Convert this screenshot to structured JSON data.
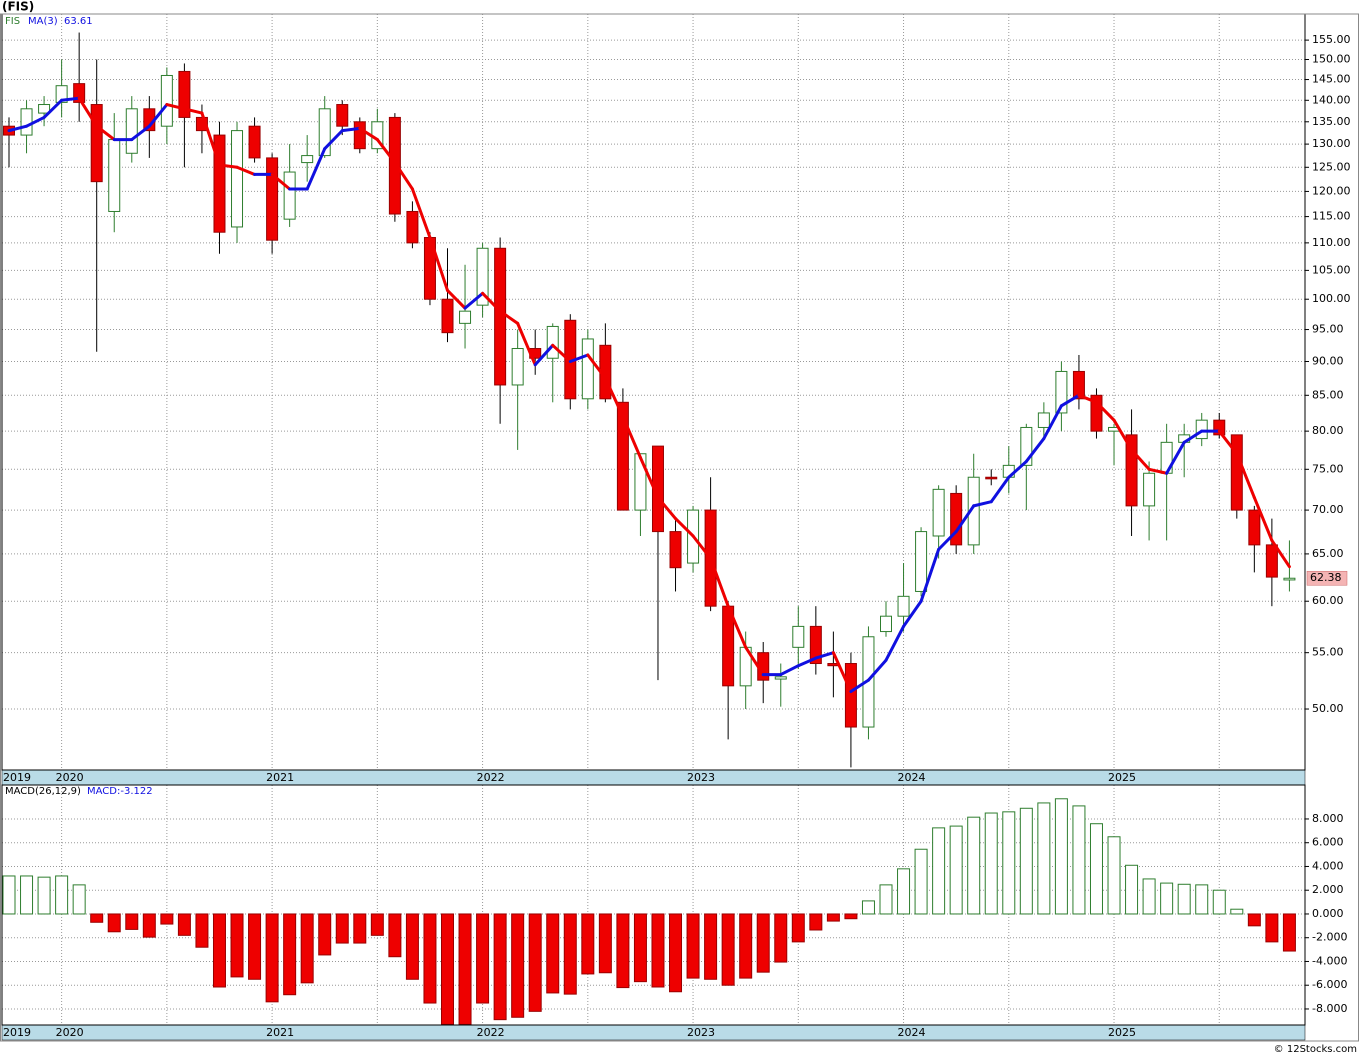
{
  "chart_data": [
    {
      "type": "candlestick",
      "title": "(FIS)",
      "symbol": "FIS",
      "categories": [
        "2019",
        null,
        null,
        "2020",
        null,
        null,
        null,
        null,
        null,
        null,
        null,
        null,
        null,
        null,
        null,
        "2021",
        null,
        null,
        null,
        null,
        null,
        null,
        null,
        null,
        null,
        null,
        null,
        "2022",
        null,
        null,
        null,
        null,
        null,
        null,
        null,
        null,
        null,
        null,
        null,
        "2023",
        null,
        null,
        null,
        null,
        null,
        null,
        null,
        null,
        null,
        null,
        null,
        "2024",
        null,
        null,
        null,
        null,
        null,
        null,
        null,
        null,
        null,
        null,
        null,
        "2025",
        null,
        null,
        null,
        null,
        null,
        null,
        null,
        null,
        null,
        null
      ],
      "open": [
        134,
        132,
        137,
        139.5,
        144,
        139,
        116,
        128,
        138,
        134,
        147,
        136,
        132,
        113,
        134,
        127,
        114.5,
        126,
        127.5,
        139,
        135,
        129,
        136,
        116,
        111,
        100,
        96,
        99,
        109,
        86.5,
        92,
        90.5,
        96.5,
        84.5,
        92.5,
        84,
        70,
        78,
        67.5,
        64,
        70,
        59.5,
        52,
        55,
        52.6,
        55.5,
        57.5,
        54,
        54,
        48.5,
        57,
        58.5,
        61,
        67,
        72,
        66,
        74,
        74,
        75.5,
        80.5,
        82.5,
        88.5,
        85,
        80,
        79.5,
        70.5,
        74.5,
        78.5,
        79,
        81.5,
        79.5,
        70,
        66,
        62.2
      ],
      "high": [
        136,
        140,
        141,
        150,
        157,
        150,
        137,
        141,
        141,
        148,
        149,
        139,
        135,
        135,
        136,
        128,
        130,
        132,
        141,
        140,
        136,
        138,
        137,
        118,
        112,
        109,
        106,
        110,
        111,
        95,
        95,
        96,
        97.5,
        95,
        96,
        86,
        77,
        78,
        69,
        70.5,
        74,
        60,
        57,
        56,
        54,
        59.5,
        59.5,
        57,
        55,
        57.5,
        60,
        64,
        68,
        73,
        73,
        77,
        75,
        78,
        81,
        84,
        90,
        91,
        86,
        81,
        83,
        76,
        81,
        81,
        82.5,
        82.5,
        79.5,
        70.5,
        69,
        66.5
      ],
      "low": [
        125,
        128,
        134,
        136,
        135,
        91.5,
        112,
        126,
        127,
        130,
        125,
        128,
        108,
        110,
        126,
        108,
        113,
        122,
        127,
        132,
        128,
        128,
        114,
        109,
        99,
        93,
        92,
        97,
        81,
        77.5,
        88,
        84,
        83,
        83,
        84,
        70,
        67,
        52.5,
        61,
        63,
        59,
        47.5,
        50,
        50.5,
        50.2,
        53.5,
        53,
        51,
        45.3,
        47.5,
        56.5,
        57,
        60.5,
        64.5,
        65,
        65,
        73,
        72,
        70,
        79,
        80,
        83,
        79,
        75.5,
        67,
        66.5,
        66.5,
        74,
        78,
        79,
        69,
        63,
        59.5,
        61
      ],
      "close": [
        132,
        138,
        139,
        143.5,
        139.5,
        122,
        131,
        138,
        133,
        146,
        136,
        133,
        112,
        133,
        127,
        110.5,
        124,
        127.5,
        138,
        134,
        129,
        135,
        115.5,
        110,
        100,
        94.5,
        98,
        109,
        86.5,
        92,
        90.5,
        95.5,
        84.5,
        93.5,
        84.5,
        70,
        77,
        67.5,
        63.5,
        70,
        59.5,
        52,
        55.5,
        52.5,
        52.8,
        57.5,
        54,
        53.8,
        48.5,
        56.5,
        58.5,
        60.5,
        67.5,
        72.5,
        66,
        74,
        73.8,
        75.5,
        80.5,
        82.5,
        88.5,
        84.5,
        80,
        80.5,
        70.5,
        74.5,
        78.5,
        79.5,
        81.5,
        79.5,
        70,
        66,
        62.5,
        62.38
      ],
      "up_color": "#2e7d2e",
      "down_color": "#ee0000",
      "overlay": {
        "name": "MA(3)",
        "up_color": "#1010e0",
        "down_color": "#ee0000",
        "values": [
          133,
          134,
          136,
          140,
          140.5,
          134,
          131,
          131,
          134,
          139,
          138,
          137,
          125.5,
          125,
          123.5,
          123.5,
          120.5,
          120.5,
          129,
          133,
          133.5,
          131,
          126,
          120.5,
          111,
          101.5,
          98.5,
          101,
          98,
          96,
          89.5,
          92.5,
          90,
          91,
          87.5,
          82,
          76.5,
          71.5,
          69,
          67,
          64.5,
          59.5,
          55.5,
          53,
          53,
          53.8,
          54.5,
          55,
          51.5,
          52.5,
          54.3,
          57.5,
          60,
          65.5,
          67.5,
          70.5,
          71,
          74,
          76,
          79,
          83.5,
          85,
          84,
          81.5,
          77.5,
          75,
          74.5,
          78.5,
          80,
          80,
          77,
          71.5,
          66.5,
          63.61
        ]
      },
      "ylim": [
        45.1,
        162
      ],
      "log_scale": true,
      "grid": true,
      "yticks": [
        {
          "value": 50,
          "label": "50.00"
        },
        {
          "value": 55,
          "label": "55.00"
        },
        {
          "value": 60,
          "label": "60.00"
        },
        {
          "value": 65,
          "label": "65.00"
        },
        {
          "value": 70,
          "label": "70.00"
        },
        {
          "value": 75,
          "label": "75.00"
        },
        {
          "value": 80,
          "label": "80.00"
        },
        {
          "value": 85,
          "label": "85.00"
        },
        {
          "value": 90,
          "label": "90.00"
        },
        {
          "value": 95,
          "label": "95.00"
        },
        {
          "value": 100,
          "label": "100.00"
        },
        {
          "value": 105,
          "label": "105.00"
        },
        {
          "value": 110,
          "label": "110.00"
        },
        {
          "value": 115,
          "label": "115.00"
        },
        {
          "value": 120,
          "label": "120.00"
        },
        {
          "value": 125,
          "label": "125.00"
        },
        {
          "value": 130,
          "label": "130.00"
        },
        {
          "value": 135,
          "label": "135.00"
        },
        {
          "value": 140,
          "label": "140.00"
        },
        {
          "value": 145,
          "label": "145.00"
        },
        {
          "value": 150,
          "label": "150.00"
        },
        {
          "value": 155,
          "label": "155.00"
        }
      ],
      "credit": "© 12Stocks.com"
    },
    {
      "type": "bar",
      "name": "MACD(26,12,9)",
      "legend_label": "MACD:",
      "categories": [
        "2019",
        null,
        null,
        "2020",
        null,
        null,
        null,
        null,
        null,
        null,
        null,
        null,
        null,
        null,
        null,
        "2021",
        null,
        null,
        null,
        null,
        null,
        null,
        null,
        null,
        null,
        null,
        null,
        "2022",
        null,
        null,
        null,
        null,
        null,
        null,
        null,
        null,
        null,
        null,
        null,
        "2023",
        null,
        null,
        null,
        null,
        null,
        null,
        null,
        null,
        null,
        null,
        null,
        "2024",
        null,
        null,
        null,
        null,
        null,
        null,
        null,
        null,
        null,
        null,
        null,
        "2025",
        null,
        null,
        null,
        null,
        null,
        null,
        null,
        null,
        null,
        null
      ],
      "values": [
        3.2,
        3.2,
        3.1,
        3.2,
        2.45,
        -0.7,
        -1.5,
        -1.3,
        -1.95,
        -0.85,
        -1.8,
        -2.8,
        -6.15,
        -5.3,
        -5.5,
        -7.4,
        -6.8,
        -5.8,
        -3.45,
        -2.45,
        -2.45,
        -1.8,
        -3.6,
        -5.5,
        -7.5,
        -9.3,
        -9.3,
        -7.5,
        -8.9,
        -8.7,
        -8.2,
        -6.65,
        -6.75,
        -5.05,
        -4.95,
        -6.2,
        -5.7,
        -6.15,
        -6.55,
        -5.4,
        -5.5,
        -6.0,
        -5.4,
        -4.9,
        -4.05,
        -2.35,
        -1.35,
        -0.6,
        -0.4,
        1.1,
        2.45,
        3.8,
        5.45,
        7.25,
        7.4,
        8.15,
        8.5,
        8.6,
        8.9,
        9.35,
        9.7,
        9.1,
        7.6,
        6.5,
        4.1,
        2.95,
        2.6,
        2.5,
        2.45,
        2.0,
        0.4,
        -1.0,
        -2.35,
        -3.122
      ],
      "up_color": "#2e7d2e",
      "down_color": "#ee0000",
      "ylim": [
        -9.35,
        10.86
      ],
      "grid": true,
      "yticks": [
        {
          "value": -8,
          "label": "-8.000"
        },
        {
          "value": -6,
          "label": "-6.000"
        },
        {
          "value": -4,
          "label": "-4.000"
        },
        {
          "value": -2,
          "label": "-2.000"
        },
        {
          "value": 0,
          "label": "0.000"
        },
        {
          "value": 2,
          "label": "2.000"
        },
        {
          "value": 4,
          "label": "4.000"
        },
        {
          "value": 6,
          "label": "6.000"
        },
        {
          "value": 8,
          "label": "8.000"
        }
      ]
    }
  ]
}
